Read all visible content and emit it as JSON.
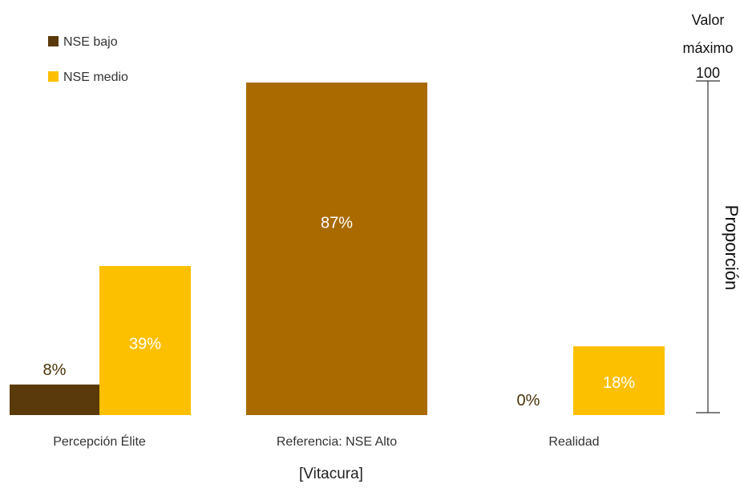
{
  "chart_data": {
    "type": "bar",
    "title": "",
    "categories": [
      "Percepción Élite",
      "Referencia: NSE Alto",
      "Realidad"
    ],
    "series": [
      {
        "name": "NSE bajo",
        "values": [
          8,
          null,
          0
        ],
        "labels": [
          "8%",
          null,
          "0%"
        ],
        "color": "#5a3a0a"
      },
      {
        "name": "NSE medio",
        "values": [
          39,
          null,
          18
        ],
        "labels": [
          "39%",
          null,
          "18%"
        ],
        "color": "#fcc000"
      },
      {
        "name": "",
        "values": [
          null,
          87,
          null
        ],
        "labels": [
          null,
          "87%",
          null
        ],
        "color": "#a96b00"
      }
    ],
    "xlabel": "[Vitacura]",
    "ylabel": "Proporción",
    "ylim": [
      0,
      100
    ],
    "legend_position": "top-left",
    "axis_max_label": [
      "Valor",
      "máximo",
      "100"
    ],
    "value_label_colors": {
      "dark": "#4a3205",
      "light": "#ffffff"
    }
  }
}
